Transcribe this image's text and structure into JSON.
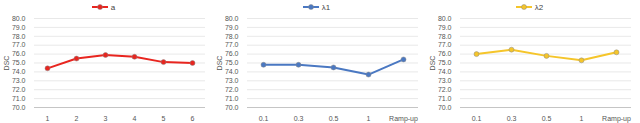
{
  "chart_data": [
    {
      "type": "line",
      "categories": [
        "1",
        "2",
        "3",
        "4",
        "5",
        "6"
      ],
      "series": [
        {
          "name": "a",
          "color": "#e8251f",
          "values": [
            74.4,
            75.5,
            75.9,
            75.7,
            75.1,
            75.0
          ]
        }
      ],
      "y_label": "DSC",
      "ylim": [
        70,
        80
      ],
      "yticks": [
        {
          "value": 70,
          "label": "70.0"
        },
        {
          "value": 71,
          "label": "71.0"
        },
        {
          "value": 72,
          "label": "72.0"
        },
        {
          "value": 73,
          "label": "73.0"
        },
        {
          "value": 74,
          "label": "74.0"
        },
        {
          "value": 75,
          "label": "75.0"
        },
        {
          "value": 76,
          "label": "76.0"
        },
        {
          "value": 77,
          "label": "77.0"
        },
        {
          "value": 78,
          "label": "78.0"
        },
        {
          "value": 79,
          "label": "79.0"
        },
        {
          "value": 80,
          "label": "80.0"
        }
      ],
      "grid": true,
      "legend": "top",
      "marker": "circle"
    },
    {
      "type": "line",
      "categories": [
        "0.1",
        "0.3",
        "0.5",
        "1",
        "Ramp-up"
      ],
      "series": [
        {
          "name": "λ1",
          "color": "#4a78c2",
          "values": [
            74.8,
            74.8,
            74.5,
            73.7,
            75.4
          ]
        }
      ],
      "y_label": "DSC",
      "ylim": [
        70,
        80
      ],
      "yticks": [
        {
          "value": 70,
          "label": "70.0"
        },
        {
          "value": 71,
          "label": "71.0"
        },
        {
          "value": 72,
          "label": "72.0"
        },
        {
          "value": 73,
          "label": "73.0"
        },
        {
          "value": 74,
          "label": "74.0"
        },
        {
          "value": 75,
          "label": "75.0"
        },
        {
          "value": 76,
          "label": "76.0"
        },
        {
          "value": 77,
          "label": "77.0"
        },
        {
          "value": 78,
          "label": "78.0"
        },
        {
          "value": 79,
          "label": "79.0"
        },
        {
          "value": 80,
          "label": "80.0"
        }
      ],
      "grid": true,
      "legend": "top",
      "marker": "circle"
    },
    {
      "type": "line",
      "categories": [
        "0.1",
        "0.3",
        "0.5",
        "1",
        "Ramp-up"
      ],
      "series": [
        {
          "name": "λ2",
          "color": "#f5c52a",
          "values": [
            76.0,
            76.5,
            75.8,
            75.3,
            76.2
          ]
        }
      ],
      "y_label": "DSC",
      "ylim": [
        70,
        80
      ],
      "yticks": [
        {
          "value": 70,
          "label": "70.0"
        },
        {
          "value": 71,
          "label": "71.0"
        },
        {
          "value": 72,
          "label": "72.0"
        },
        {
          "value": 73,
          "label": "73.0"
        },
        {
          "value": 74,
          "label": "74.0"
        },
        {
          "value": 75,
          "label": "75.0"
        },
        {
          "value": 76,
          "label": "76.0"
        },
        {
          "value": 77,
          "label": "77.0"
        },
        {
          "value": 78,
          "label": "78.0"
        },
        {
          "value": 79,
          "label": "79.0"
        },
        {
          "value": 80,
          "label": "80.0"
        }
      ],
      "grid": true,
      "legend": "top",
      "marker": "circle"
    }
  ]
}
